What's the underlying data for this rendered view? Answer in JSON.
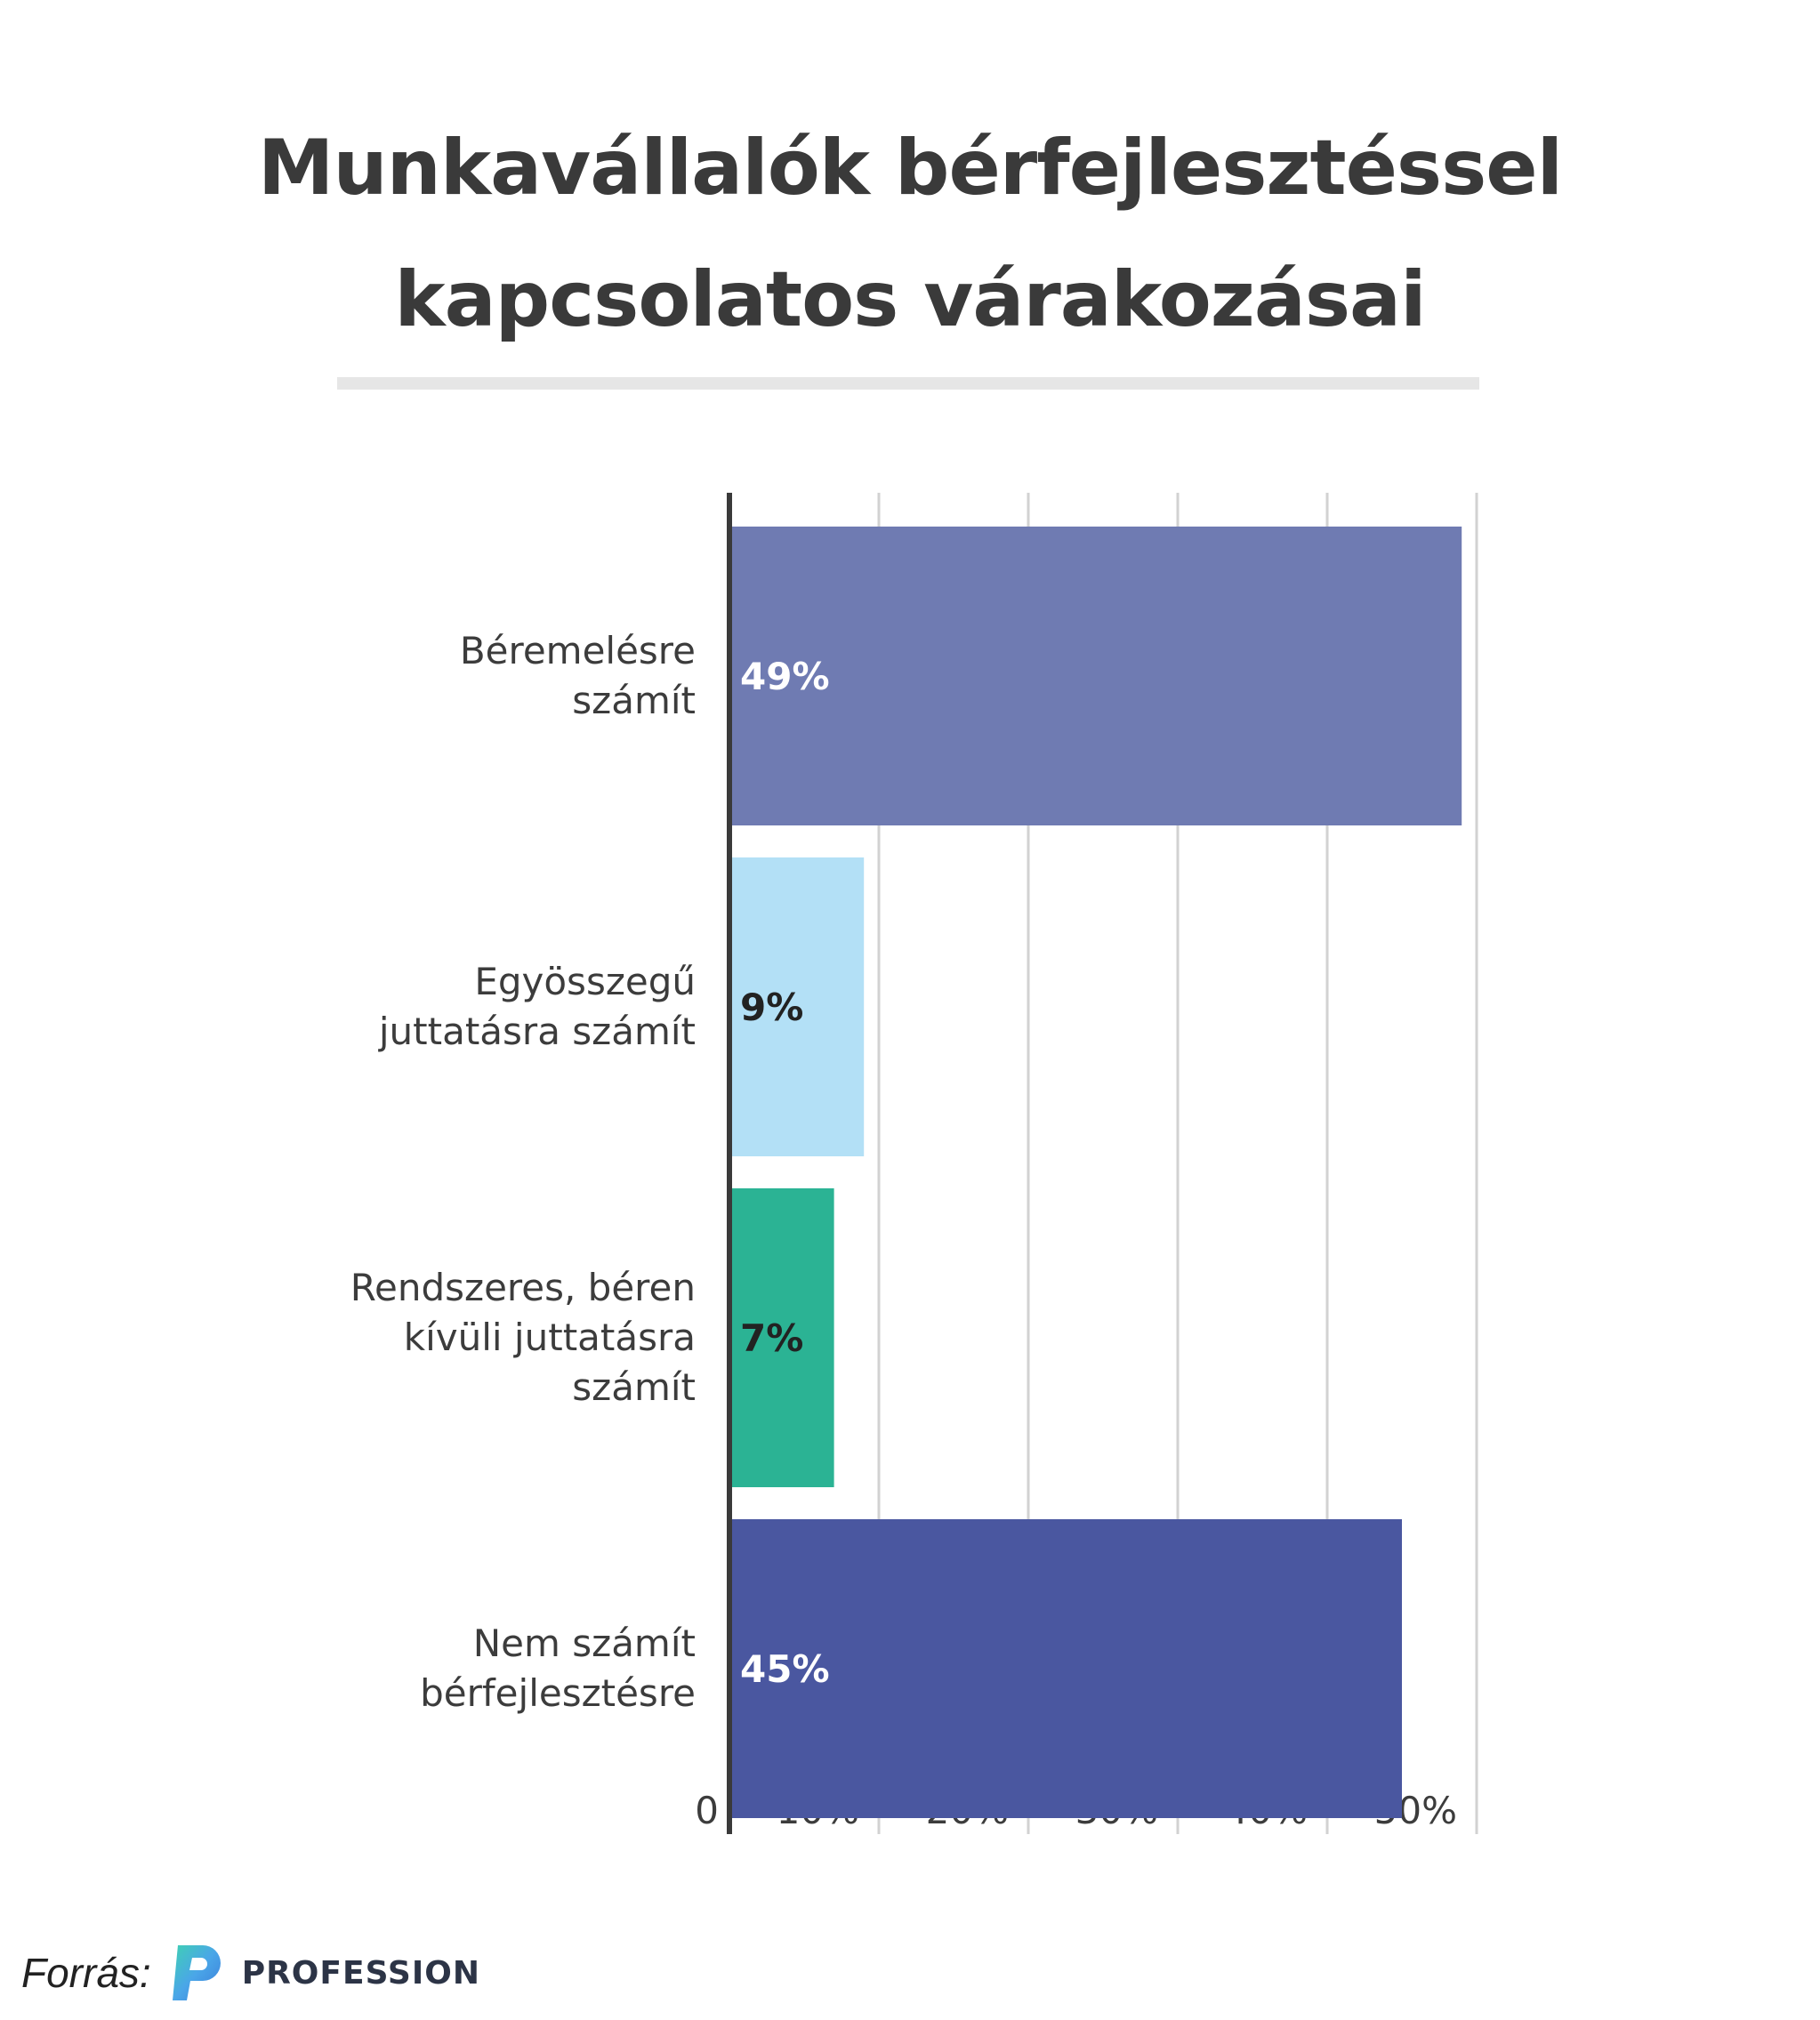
{
  "chart_data": {
    "type": "bar",
    "orientation": "horizontal",
    "title_lines": [
      "Munkavállalók bérfejlesztéssel",
      "kapcsolatos várakozásai"
    ],
    "categories": [
      [
        "Béremelésre",
        "számít"
      ],
      [
        "Egyösszegű",
        "juttatásra számít"
      ],
      [
        "Rendszeres, béren",
        "kívüli juttatásra",
        "számít"
      ],
      [
        "Nem számít",
        "bérfejlesztésre"
      ]
    ],
    "values": [
      49,
      9,
      7,
      45
    ],
    "data_labels": [
      "49%",
      "9%",
      "7%",
      "45%"
    ],
    "colors": [
      "#6f7bb2",
      "#b3e0f6",
      "#2bb394",
      "#4a57a0"
    ],
    "label_colors": [
      "#ffffff",
      "#222222",
      "#222222",
      "#ffffff"
    ],
    "xlim": [
      0,
      50
    ],
    "xticks": [
      0,
      10,
      20,
      30,
      40,
      50
    ],
    "xtick_labels": [
      "0",
      "10%",
      "20%",
      "30%",
      "40%",
      "50%"
    ],
    "grid": true,
    "legend": "none"
  },
  "footer": {
    "source_label": "Forrás:",
    "brand": "PROFESSION"
  }
}
